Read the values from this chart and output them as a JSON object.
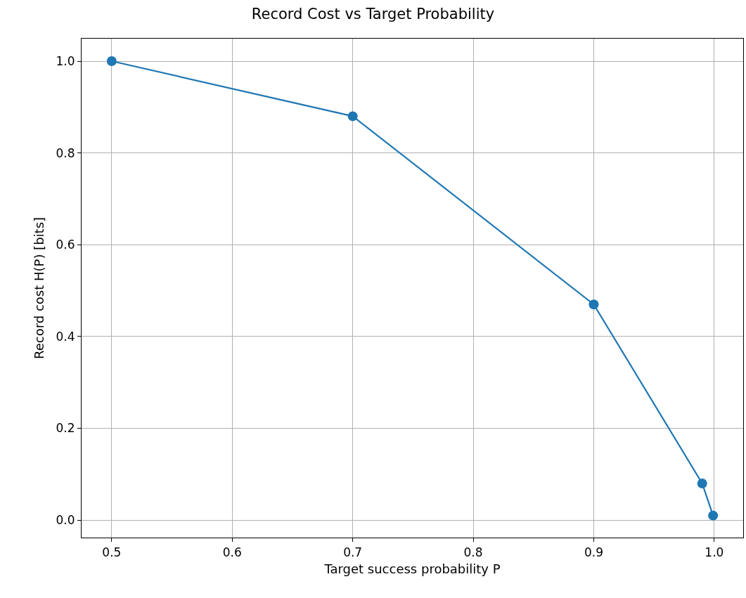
{
  "chart_data": {
    "type": "line",
    "title": "Record Cost vs Target Probability",
    "xlabel": "Target success probability P",
    "ylabel": "Record cost H(P) [bits]",
    "x": [
      0.5,
      0.7,
      0.9,
      0.99,
      0.999
    ],
    "series": [
      {
        "color": "#1f77b4",
        "values": [
          1.0,
          0.88,
          0.47,
          0.08,
          0.01
        ]
      }
    ],
    "xlim": [
      0.475,
      1.024
    ],
    "xticks": [
      {
        "value": 0.5,
        "label": "0.5"
      },
      {
        "value": 0.6,
        "label": "0.6"
      },
      {
        "value": 0.7,
        "label": "0.7"
      },
      {
        "value": 0.8,
        "label": "0.8"
      },
      {
        "value": 0.9,
        "label": "0.9"
      },
      {
        "value": 1.0,
        "label": "1.0"
      }
    ],
    "ylim": [
      -0.038,
      1.049
    ],
    "yticks": [
      {
        "value": 0.0,
        "label": "0.0"
      },
      {
        "value": 0.2,
        "label": "0.2"
      },
      {
        "value": 0.4,
        "label": "0.4"
      },
      {
        "value": 0.6,
        "label": "0.6"
      },
      {
        "value": 0.8,
        "label": "0.8"
      },
      {
        "value": 1.0,
        "label": "1.0"
      }
    ],
    "grid": true,
    "marker": "circle",
    "line_style": "solid"
  }
}
